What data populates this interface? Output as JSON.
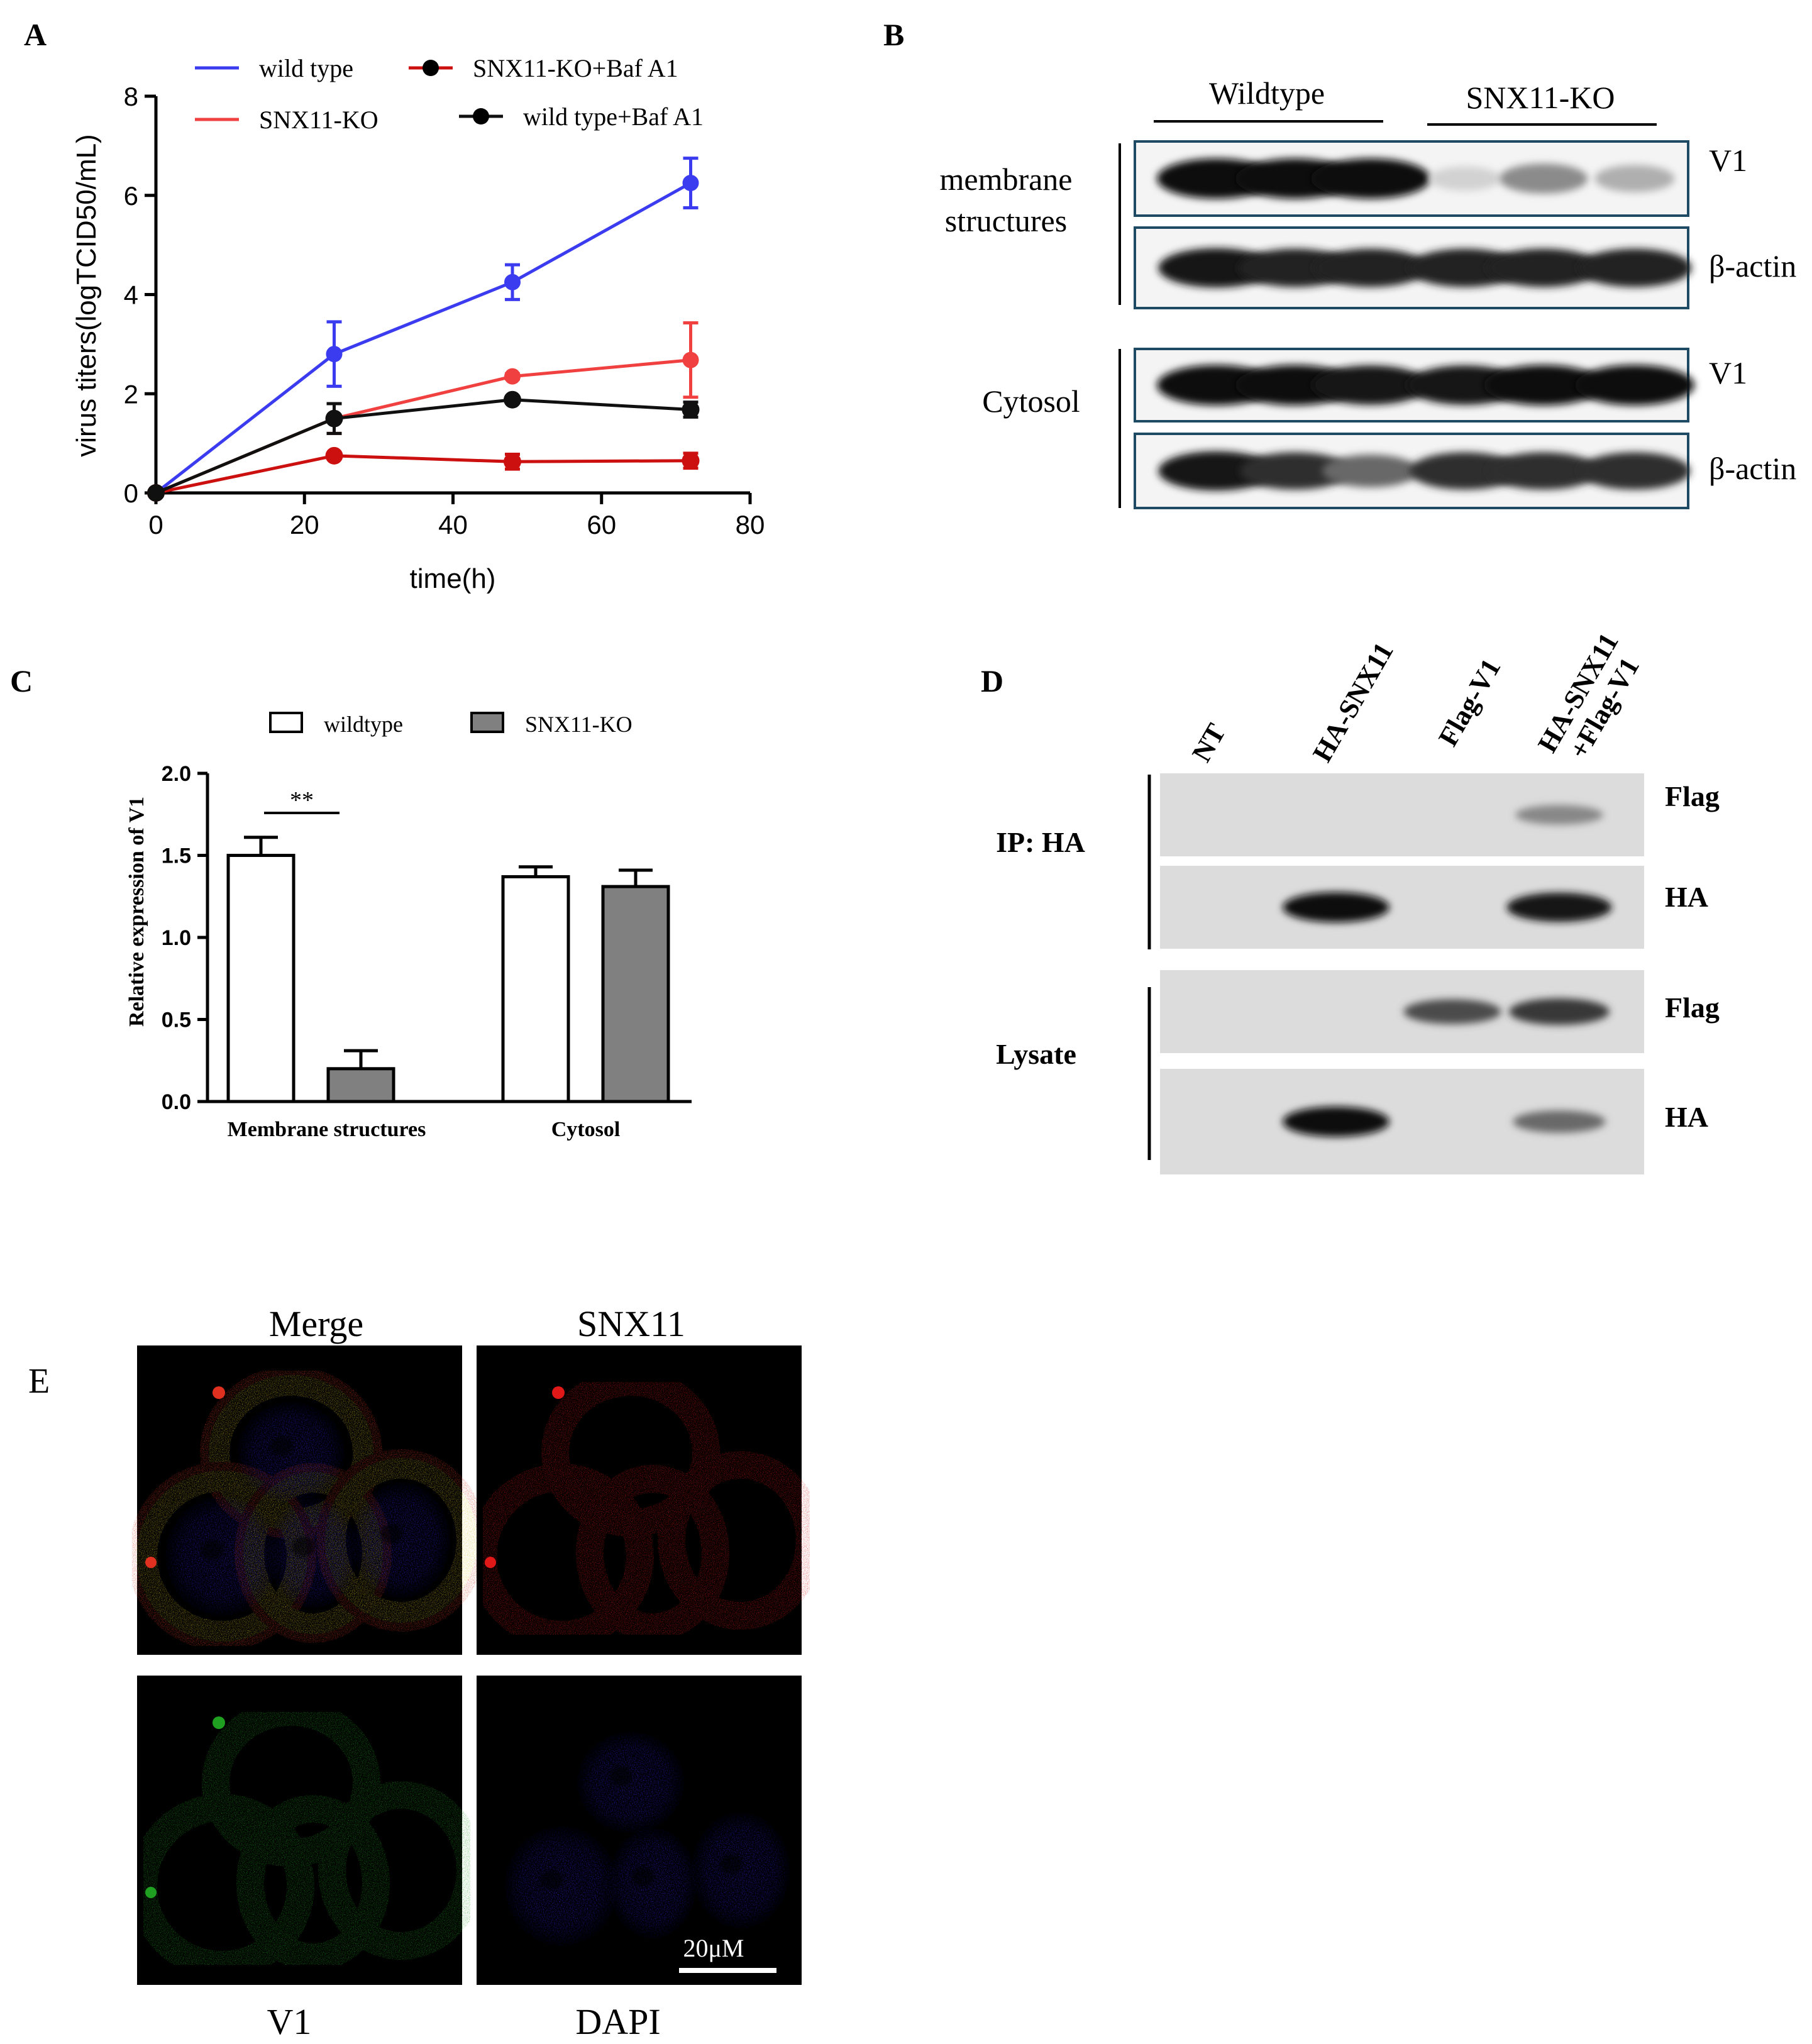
{
  "panel_letters": {
    "a": "A",
    "b": "B",
    "c": "C",
    "d": "D",
    "e": "E"
  },
  "colors": {
    "wild_type": "#3b3bf0",
    "snx11_ko": "#f04040",
    "snx11_ko_baf": "#cc1010",
    "wild_type_baf": "#101010",
    "bar_wildtype": "#ffffff",
    "bar_ko": "#808080",
    "band_frame": "#1f4a63"
  },
  "chart_data": [
    {
      "type": "line",
      "panel": "A",
      "xlabel": "time(h)",
      "ylabel": "virus titers(logTCID50/mL)",
      "xlim": [
        0,
        80
      ],
      "ylim": [
        0,
        8
      ],
      "xticks": [
        "0",
        "20",
        "40",
        "60",
        "80"
      ],
      "yticks": [
        "0",
        "2",
        "4",
        "6",
        "8"
      ],
      "x": [
        0,
        24,
        48,
        72
      ],
      "series": [
        {
          "name": "wild type",
          "color": "#3b3bf0",
          "marker": "circle-small",
          "values": [
            0,
            2.8,
            4.25,
            6.25
          ],
          "errors": [
            0,
            0.65,
            0.35,
            0.5
          ]
        },
        {
          "name": "SNX11-KO",
          "color": "#f04040",
          "marker": "circle-small",
          "values": [
            0,
            1.5,
            2.35,
            2.68
          ],
          "errors": [
            0,
            0.3,
            0.05,
            0.75
          ]
        },
        {
          "name": "SNX11-KO+Baf A1",
          "color": "#cc1010",
          "marker": "circle",
          "values": [
            0,
            0.75,
            0.63,
            0.65
          ],
          "errors": [
            0,
            0.05,
            0.15,
            0.15
          ]
        },
        {
          "name": "wild type+Baf A1",
          "color": "#101010",
          "marker": "circle",
          "values": [
            0,
            1.5,
            1.88,
            1.68
          ],
          "errors": [
            0,
            0.3,
            0.05,
            0.15
          ]
        }
      ],
      "legend": "top"
    },
    {
      "type": "bar",
      "panel": "C",
      "categories": [
        "Membrane structures",
        "Cytosol"
      ],
      "ylabel": "Relative expression of V1",
      "ylim": [
        0,
        2.0
      ],
      "yticks": [
        "0.0",
        "0.5",
        "1.0",
        "1.5",
        "2.0"
      ],
      "series": [
        {
          "name": "wildtype",
          "color": "#ffffff",
          "values": [
            1.5,
            1.37
          ],
          "errors": [
            0.11,
            0.06
          ]
        },
        {
          "name": "SNX11-KO",
          "color": "#808080",
          "values": [
            0.2,
            1.31
          ],
          "errors": [
            0.11,
            0.1
          ]
        }
      ],
      "significance": [
        {
          "category": "Membrane structures",
          "label": "**"
        }
      ],
      "legend": "top"
    }
  ],
  "panel_b": {
    "group_labels": [
      "Wildtype",
      "SNX11-KO"
    ],
    "section_labels": [
      "membrane",
      "structures",
      "Cytosol"
    ],
    "row_labels": [
      "V1",
      "β-actin",
      "V1",
      "β-actin"
    ],
    "band_intensity": [
      [
        1,
        1,
        1,
        0.15,
        0.45,
        0.3
      ],
      [
        0.95,
        0.9,
        0.9,
        0.9,
        0.9,
        0.9
      ],
      [
        1,
        1,
        0.95,
        0.95,
        1,
        1
      ],
      [
        0.95,
        0.85,
        0.6,
        0.85,
        0.85,
        0.85
      ]
    ]
  },
  "panel_d": {
    "lanes": [
      "NT",
      "HA-SNX11",
      "Flag-V1",
      "HA-SNX11",
      "+Flag-V1"
    ],
    "section_labels": [
      "IP: HA",
      "Lysate"
    ],
    "row_labels": [
      "Flag",
      "HA",
      "Flag",
      "HA"
    ],
    "band_intensity": [
      [
        0,
        0,
        0,
        0.4
      ],
      [
        0,
        1,
        0,
        0.95
      ],
      [
        0,
        0,
        0.7,
        0.8
      ],
      [
        0,
        1,
        0,
        0.55
      ]
    ]
  },
  "panel_e": {
    "labels": [
      "Merge",
      "SNX11",
      "V1",
      "DAPI"
    ],
    "scale_bar": "20μM"
  }
}
